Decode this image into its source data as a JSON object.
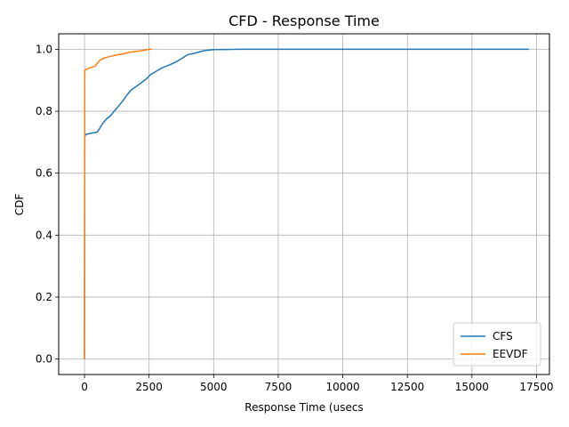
{
  "chart_data": {
    "type": "line",
    "title": "CFD - Response Time",
    "xlabel": "Response Time (usecs",
    "ylabel": "CDF",
    "xlim": [
      -1000,
      18000
    ],
    "ylim": [
      -0.05,
      1.05
    ],
    "xticks": [
      0,
      2500,
      5000,
      7500,
      10000,
      12500,
      15000,
      17500
    ],
    "xtick_labels": [
      "0",
      "2500",
      "5000",
      "7500",
      "10000",
      "12500",
      "15000",
      "17500"
    ],
    "yticks": [
      0.0,
      0.2,
      0.4,
      0.6,
      0.8,
      1.0
    ],
    "ytick_labels": [
      "0.0",
      "0.2",
      "0.4",
      "0.6",
      "0.8",
      "1.0"
    ],
    "grid": true,
    "legend_position": "lower-right",
    "series": [
      {
        "name": "CFS",
        "color": "#1f77b4",
        "points": [
          [
            0,
            0.0
          ],
          [
            5,
            0.5
          ],
          [
            10,
            0.72
          ],
          [
            50,
            0.725
          ],
          [
            200,
            0.728
          ],
          [
            500,
            0.733
          ],
          [
            700,
            0.76
          ],
          [
            850,
            0.775
          ],
          [
            1000,
            0.785
          ],
          [
            1200,
            0.805
          ],
          [
            1350,
            0.82
          ],
          [
            1500,
            0.835
          ],
          [
            1650,
            0.853
          ],
          [
            1800,
            0.868
          ],
          [
            2000,
            0.88
          ],
          [
            2200,
            0.892
          ],
          [
            2400,
            0.905
          ],
          [
            2550,
            0.918
          ],
          [
            2800,
            0.93
          ],
          [
            3000,
            0.94
          ],
          [
            3300,
            0.95
          ],
          [
            3600,
            0.962
          ],
          [
            3800,
            0.972
          ],
          [
            4000,
            0.983
          ],
          [
            4300,
            0.988
          ],
          [
            4600,
            0.995
          ],
          [
            5000,
            0.999
          ],
          [
            6000,
            1.0
          ],
          [
            10000,
            1.0
          ],
          [
            17200,
            1.0
          ]
        ]
      },
      {
        "name": "EEVDF",
        "color": "#ff7f0e",
        "points": [
          [
            0,
            0.0
          ],
          [
            5,
            0.5
          ],
          [
            10,
            0.93
          ],
          [
            50,
            0.935
          ],
          [
            200,
            0.94
          ],
          [
            400,
            0.945
          ],
          [
            600,
            0.965
          ],
          [
            800,
            0.973
          ],
          [
            1000,
            0.977
          ],
          [
            1200,
            0.981
          ],
          [
            1500,
            0.985
          ],
          [
            1700,
            0.99
          ],
          [
            2000,
            0.993
          ],
          [
            2300,
            0.997
          ],
          [
            2500,
            1.0
          ],
          [
            2600,
            1.0
          ]
        ]
      }
    ]
  },
  "colors": {
    "grid": "#b0b0b0",
    "axes": "#000000"
  }
}
